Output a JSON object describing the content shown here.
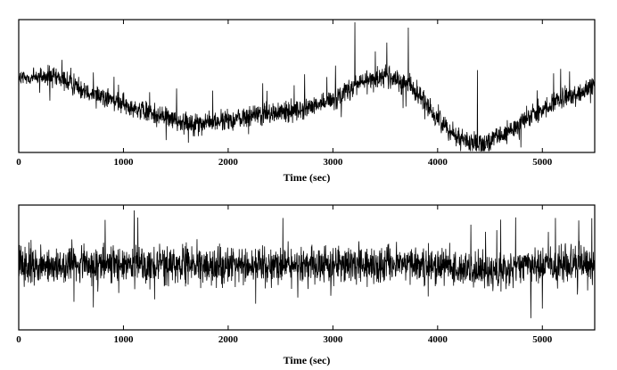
{
  "chart_data": [
    {
      "type": "line",
      "title": "",
      "xlabel": "Time (sec)",
      "ylabel": "",
      "xlim": [
        0,
        5500
      ],
      "x_ticks": [
        0,
        1000,
        2000,
        3000,
        4000,
        5000
      ],
      "y_ticks_labeled": false,
      "grid": false,
      "legend": "none",
      "series": [
        {
          "color": "#000000",
          "x": [
            0,
            250,
            500,
            750,
            1000,
            1250,
            1500,
            1750,
            2000,
            2250,
            2500,
            2750,
            3000,
            3250,
            3500,
            3750,
            3950,
            4150,
            4300,
            4400,
            4500,
            4650,
            4800,
            5000,
            5250,
            5500
          ],
          "y": [
            0.55,
            0.58,
            0.52,
            0.44,
            0.36,
            0.3,
            0.24,
            0.22,
            0.24,
            0.28,
            0.3,
            0.33,
            0.4,
            0.52,
            0.58,
            0.5,
            0.3,
            0.14,
            0.08,
            0.06,
            0.08,
            0.14,
            0.22,
            0.32,
            0.42,
            0.5
          ],
          "noise_amplitude": 0.12,
          "spikes": [
            {
              "x": 3210,
              "y": 0.98
            },
            {
              "x": 3720,
              "y": 0.94
            },
            {
              "x": 4380,
              "y": 0.62
            }
          ]
        }
      ]
    },
    {
      "type": "line",
      "title": "",
      "xlabel": "Time (sec)",
      "ylabel": "",
      "xlim": [
        0,
        5500
      ],
      "x_ticks": [
        0,
        1000,
        2000,
        3000,
        4000,
        5000
      ],
      "y_ticks_labeled": false,
      "grid": false,
      "legend": "none",
      "series": [
        {
          "color": "#000000",
          "x": [
            0,
            1000,
            2000,
            3000,
            4000,
            4400,
            5000,
            5500
          ],
          "y": [
            0.52,
            0.52,
            0.52,
            0.52,
            0.52,
            0.48,
            0.52,
            0.52
          ],
          "noise_amplitude": 0.22
        }
      ]
    }
  ]
}
